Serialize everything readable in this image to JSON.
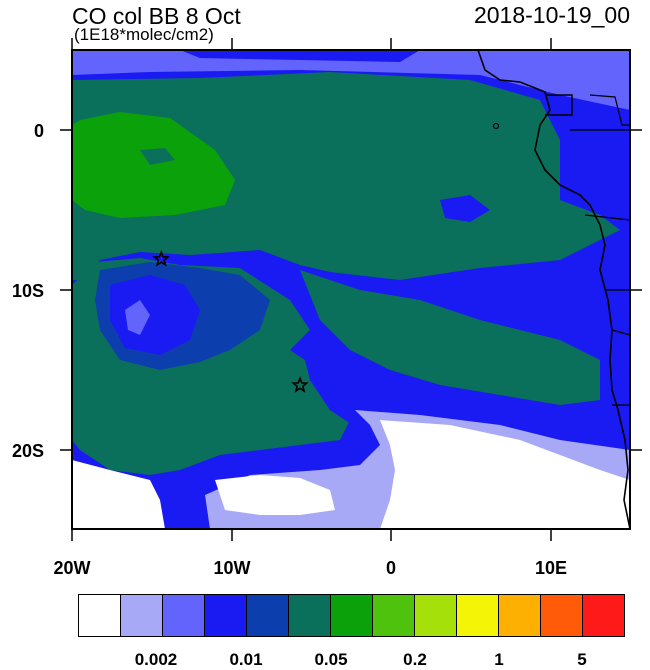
{
  "header": {
    "title": "CO col BB 8 Oct",
    "subtitle": "(1E18*molec/cm2)",
    "datetime": "2018-10-19_00"
  },
  "axes": {
    "lat_labels": [
      "0",
      "10S",
      "20S"
    ],
    "lon_labels": [
      "20W",
      "10W",
      "0",
      "10E"
    ]
  },
  "markers": [
    {
      "name": "star",
      "lon": -14.4,
      "lat": -8.1
    },
    {
      "name": "star",
      "lon": -5.7,
      "lat": -16.0
    }
  ],
  "colorbar": {
    "colors": [
      "#ffffff",
      "#a7a9f7",
      "#6264fc",
      "#1a1af2",
      "#0d3ead",
      "#0b705b",
      "#0ba10b",
      "#4ec20c",
      "#a6e00a",
      "#f4f406",
      "#fdb001",
      "#ff5b08",
      "#ff1a1a"
    ],
    "labels": [
      "0.002",
      "0.01",
      "0.05",
      "0.2",
      "1",
      "5"
    ]
  }
}
